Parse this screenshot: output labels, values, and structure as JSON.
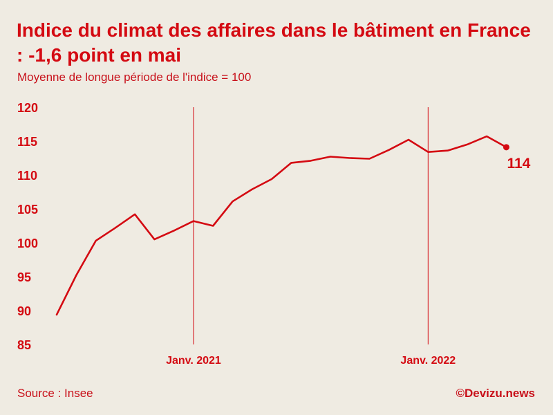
{
  "title": "Indice du climat des affaires dans le bâtiment en France : -1,6 point en mai",
  "subtitle": "Moyenne de longue période de l'indice = 100",
  "source": "Source : Insee",
  "credit": "©Devizu.news",
  "colors": {
    "accent": "#d40a12",
    "background": "#efebe2"
  },
  "chart_data": {
    "type": "line",
    "title": "Indice du climat des affaires dans le bâtiment en France : -1,6 point en mai",
    "subtitle": "Moyenne de longue période de l'indice = 100",
    "xlabel": "",
    "ylabel": "",
    "ylim": [
      85,
      120
    ],
    "yticks": [
      120,
      115,
      110,
      105,
      100,
      95,
      90,
      85
    ],
    "x_tick_labels": [
      "Janv. 2021",
      "Janv. 2022"
    ],
    "x_tick_positions": [
      7,
      19
    ],
    "grid": false,
    "series": [
      {
        "values": [
          89.4,
          95.2,
          100.3,
          102.2,
          104.2,
          100.5,
          101.8,
          103.2,
          102.5,
          106.1,
          107.9,
          109.4,
          111.8,
          112.1,
          112.7,
          112.5,
          112.4,
          113.7,
          115.2,
          113.4,
          113.6,
          114.5,
          115.7,
          114.1
        ]
      }
    ],
    "last_value_label": "114"
  }
}
